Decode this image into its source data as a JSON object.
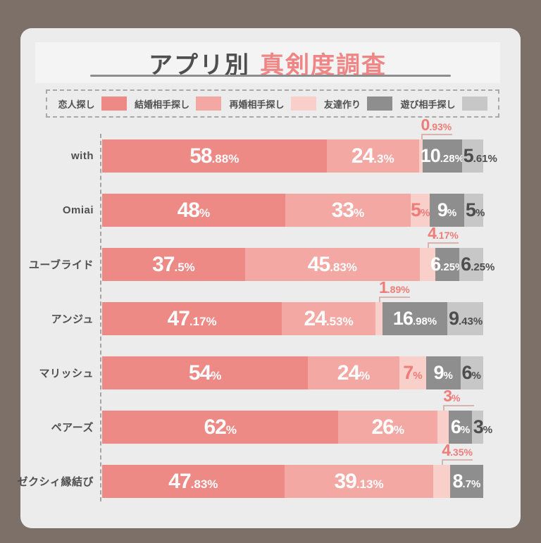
{
  "title": {
    "dark": "アプリ別",
    "pink": "真剣度調査"
  },
  "legend": [
    {
      "label": "恋人探し",
      "color": "#ee8a86",
      "value_text_color": "#ffffff"
    },
    {
      "label": "結婚相手探し",
      "color": "#f4a8a3",
      "value_text_color": "#ffffff"
    },
    {
      "label": "再婚相手探し",
      "color": "#f9cfca",
      "value_text_color": "#ee7c78"
    },
    {
      "label": "友達作り",
      "color": "#8e8e8e",
      "value_text_color": "#ffffff"
    },
    {
      "label": "遊び相手探し",
      "color": "#c7c7c7",
      "value_text_color": "#4d4d4d"
    }
  ],
  "chart_data": {
    "type": "bar",
    "orientation": "horizontal",
    "stacked": true,
    "unit": "%",
    "xlim": [
      0,
      100
    ],
    "title": "アプリ別 真剣度調査",
    "legend_position": "top",
    "categories": [
      "with",
      "Omiai",
      "ユーブライド",
      "アンジュ",
      "マリッシュ",
      "ペアーズ",
      "ゼクシィ縁結び"
    ],
    "series": [
      {
        "name": "恋人探し",
        "values": [
          58.88,
          48,
          37.5,
          47.17,
          54,
          62,
          47.83
        ],
        "labels": [
          "58.88%",
          "48%",
          "37.5%",
          "47.17%",
          "54%",
          "62%",
          "47.83%"
        ]
      },
      {
        "name": "結婚相手探し",
        "values": [
          24.3,
          33,
          45.83,
          24.53,
          24,
          26,
          39.13
        ],
        "labels": [
          "24.3%",
          "33%",
          "45.83%",
          "24.53%",
          "24%",
          "26%",
          "39.13%"
        ]
      },
      {
        "name": "再婚相手探し",
        "values": [
          0.93,
          5,
          4.17,
          1.89,
          7,
          3,
          4.35
        ],
        "labels": [
          "0.93%",
          "5%",
          "4.17%",
          "1.89%",
          "7%",
          "3%",
          "4.35%"
        ]
      },
      {
        "name": "友達作り",
        "values": [
          10.28,
          9,
          6.25,
          16.98,
          9,
          6,
          8.7
        ],
        "labels": [
          "10.28%",
          "9%",
          "6.25%",
          "16.98%",
          "9%",
          "6%",
          "8.7%"
        ]
      },
      {
        "name": "遊び相手探し",
        "values": [
          5.61,
          5,
          6.25,
          9.43,
          6,
          3,
          0
        ],
        "labels": [
          "5.61%",
          "5%",
          "6.25%",
          "9.43%",
          "6%",
          "3%",
          ""
        ]
      }
    ],
    "callout_rule": "再婚相手探し segments under 5% are labeled above the bar with a bracket"
  },
  "colors": {
    "outer_background": "#7d7069",
    "panel_background": "#ececec",
    "title_dark": "#4f4f4f",
    "title_pink": "#ef8585",
    "callout_pink": "#ee7c78",
    "category_text": "#4f4f4f",
    "bracket_line": "#d8b3af"
  }
}
